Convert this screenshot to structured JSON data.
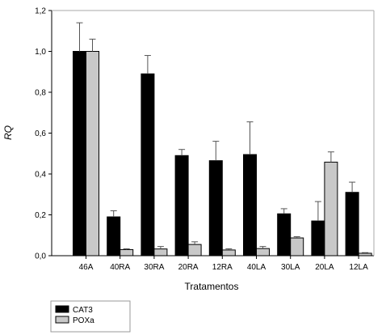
{
  "chart_data": {
    "type": "bar",
    "xlabel": "Tratamentos",
    "ylabel": "RQ",
    "ylim": [
      0,
      1.2
    ],
    "yticks": [
      "0,0",
      "0,2",
      "0,4",
      "0,6",
      "0,8",
      "1,0",
      "1,2"
    ],
    "grid": false,
    "legend_position": "bottom-left",
    "categories": [
      "46A",
      "40RA",
      "30RA",
      "20RA",
      "12RA",
      "40LA",
      "30LA",
      "20LA",
      "12LA"
    ],
    "series": [
      {
        "name": "CAT3",
        "color": "#000000",
        "values": [
          1.0,
          0.19,
          0.89,
          0.49,
          0.465,
          0.495,
          0.205,
          0.17,
          0.31
        ],
        "errors": [
          0.14,
          0.03,
          0.09,
          0.03,
          0.095,
          0.16,
          0.025,
          0.095,
          0.05
        ]
      },
      {
        "name": "POXa",
        "color": "#c8c8c8",
        "values": [
          1.0,
          0.03,
          0.033,
          0.055,
          0.028,
          0.035,
          0.087,
          0.458,
          0.012
        ],
        "errors": [
          0.06,
          0.004,
          0.012,
          0.013,
          0.006,
          0.01,
          0.006,
          0.05,
          0.003
        ]
      }
    ]
  }
}
